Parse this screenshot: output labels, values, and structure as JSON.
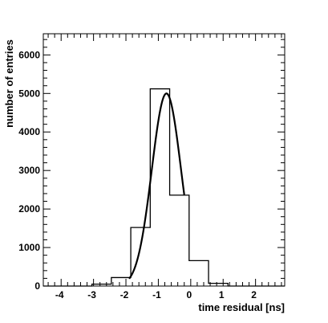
{
  "chart_data": {
    "type": "bar",
    "subtype": "step-histogram-with-fit",
    "xlabel": "time residual [ns]",
    "ylabel": "number of entries",
    "xlim": [
      -4.55,
      2.9
    ],
    "ylim": [
      0,
      6550
    ],
    "x_ticks": [
      -4,
      -3,
      -2,
      -1,
      0,
      1,
      2
    ],
    "x_tick_labels": [
      "-4",
      "-3",
      "-2",
      "-1",
      "0",
      "1",
      "2"
    ],
    "y_ticks": [
      0,
      1000,
      2000,
      3000,
      4000,
      5000,
      6000
    ],
    "y_tick_labels": [
      "0",
      "1000",
      "2000",
      "3000",
      "4000",
      "5000",
      "6000"
    ],
    "grid": false,
    "bin_width": 0.6,
    "bins": [
      {
        "x_low": -4.55,
        "x_high": -3.05,
        "count": 0
      },
      {
        "x_low": -3.05,
        "x_high": -2.45,
        "count": 50
      },
      {
        "x_low": -2.45,
        "x_high": -1.85,
        "count": 220
      },
      {
        "x_low": -1.85,
        "x_high": -1.25,
        "count": 1520
      },
      {
        "x_low": -1.25,
        "x_high": -0.65,
        "count": 5120
      },
      {
        "x_low": -0.65,
        "x_high": -0.05,
        "count": 2360
      },
      {
        "x_low": -0.05,
        "x_high": 0.55,
        "count": 660
      },
      {
        "x_low": 0.55,
        "x_high": 1.15,
        "count": 70
      },
      {
        "x_low": 1.15,
        "x_high": 2.9,
        "count": 0
      }
    ],
    "fit": {
      "type": "gaussian",
      "amplitude": 5000,
      "mean": -0.75,
      "sigma": 0.45,
      "x_range": [
        -1.9,
        -0.2
      ]
    }
  }
}
